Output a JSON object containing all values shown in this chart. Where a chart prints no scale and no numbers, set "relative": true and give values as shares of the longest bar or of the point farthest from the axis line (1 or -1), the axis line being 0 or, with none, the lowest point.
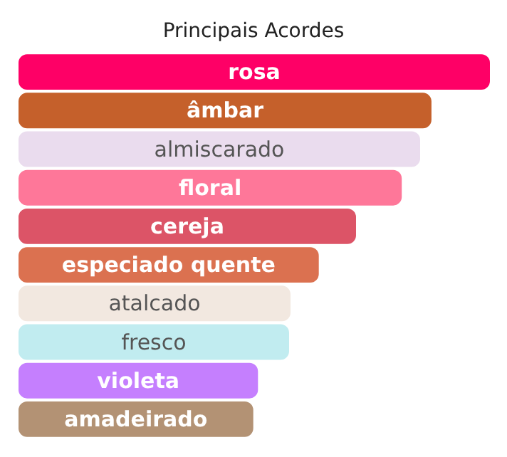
{
  "chart_data": {
    "type": "bar",
    "title": "Principais Acordes",
    "orientation": "horizontal",
    "relative": true,
    "categories": [
      "rosa",
      "âmbar",
      "almiscarado",
      "floral",
      "cereja",
      "especiado quente",
      "atalcado",
      "fresco",
      "violeta",
      "amadeirado"
    ],
    "values": [
      1,
      0.876,
      0.852,
      0.813,
      0.716,
      0.637,
      0.577,
      0.574,
      0.508,
      0.498
    ],
    "colors": [
      "#fe0066",
      "#c5602b",
      "#eadcee",
      "#fe7799",
      "#dc5467",
      "#db7150",
      "#f2e8e0",
      "#c1ecf0",
      "#c57ffe",
      "#b39274"
    ]
  }
}
